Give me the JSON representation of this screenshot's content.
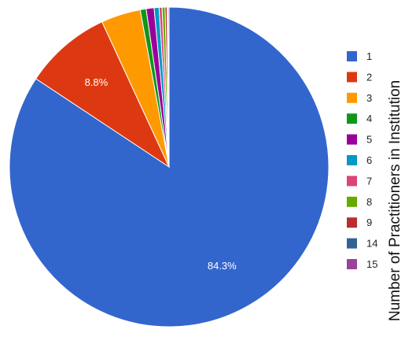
{
  "chart_data": {
    "type": "pie",
    "title": "",
    "legend_title": "Number of Practitioners in Institution",
    "legend_position": "right",
    "categories": [
      "1",
      "2",
      "3",
      "4",
      "5",
      "6",
      "7",
      "8",
      "9",
      "14",
      "15"
    ],
    "values": [
      84.3,
      8.8,
      4.0,
      0.6,
      0.8,
      0.5,
      0.3,
      0.3,
      0.2,
      0.1,
      0.1
    ],
    "colors": [
      "#3366cc",
      "#dc3912",
      "#ff9900",
      "#109618",
      "#990099",
      "#0099c6",
      "#dd4477",
      "#66aa00",
      "#b82e2e",
      "#316395",
      "#994499"
    ],
    "data_labels": [
      "84.3%",
      "8.8%",
      "",
      "",
      "",
      "",
      "",
      "",
      "",
      "",
      ""
    ]
  }
}
